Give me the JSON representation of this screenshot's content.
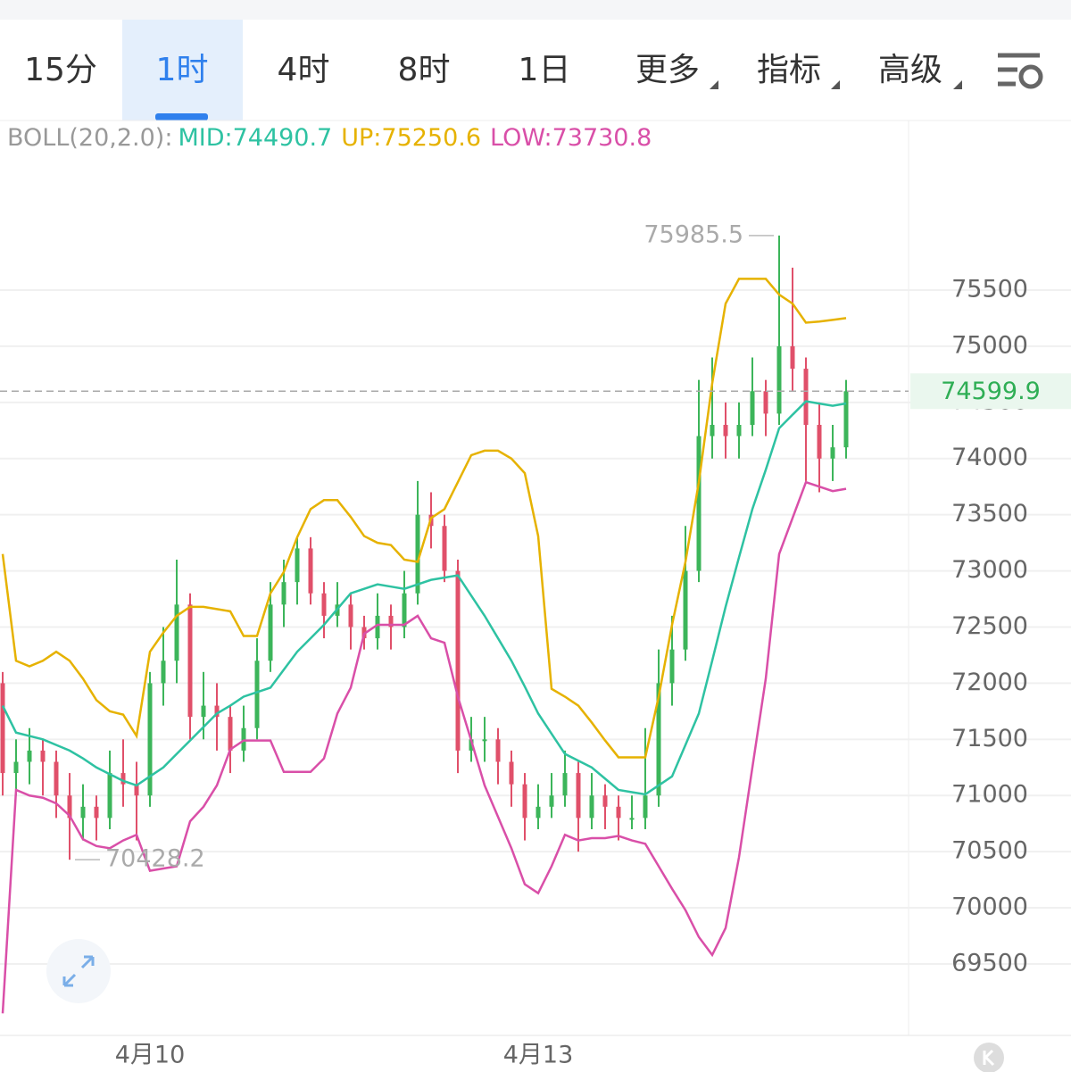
{
  "toolbar": {
    "tabs": [
      "15分",
      "1时",
      "4时",
      "8时",
      "1日",
      "更多",
      "指标",
      "高级"
    ],
    "selected": 1
  },
  "chart_data": {
    "type": "candlestick",
    "indicator": "BOLL(20,2.0):",
    "categories": [
      null,
      null,
      null,
      null,
      null,
      null,
      null,
      null,
      null,
      null,
      null,
      "4月10",
      null,
      null,
      null,
      null,
      null,
      null,
      null,
      null,
      null,
      null,
      null,
      null,
      null,
      null,
      null,
      null,
      null,
      null,
      null,
      null,
      null,
      null,
      null,
      null,
      null,
      null,
      null,
      null,
      "4月13",
      null,
      null,
      null,
      null,
      null,
      null,
      null,
      null,
      null,
      null,
      null,
      null,
      null,
      null,
      null,
      null,
      null,
      null,
      null,
      null,
      null,
      null,
      null
    ],
    "open": [
      72000,
      71200,
      71300,
      71400,
      71300,
      71000,
      70800,
      70900,
      70800,
      71200,
      71100,
      71000,
      72000,
      72200,
      72700,
      71700,
      71800,
      71700,
      71400,
      71600,
      72200,
      72700,
      72900,
      73200,
      72800,
      72600,
      72700,
      72500,
      72400,
      72600,
      72500,
      72800,
      73500,
      73400,
      73000,
      71400,
      71500,
      71500,
      71300,
      71100,
      70800,
      70900,
      71000,
      71200,
      70800,
      71000,
      70900,
      70800,
      70800,
      71000,
      72000,
      72300,
      73000,
      74200,
      74300,
      74200,
      74300,
      74600,
      74400,
      75000,
      74800,
      74300,
      74000,
      74100
    ],
    "high": [
      72100,
      71500,
      71600,
      71500,
      71400,
      71200,
      71100,
      71000,
      71400,
      71500,
      71300,
      72100,
      72500,
      73100,
      72800,
      72100,
      72000,
      71800,
      71800,
      72400,
      72900,
      73100,
      73300,
      73300,
      72900,
      72900,
      72800,
      72600,
      72800,
      72700,
      73000,
      73800,
      73700,
      73500,
      73100,
      71700,
      71700,
      71600,
      71400,
      71200,
      71100,
      71200,
      71400,
      71300,
      71200,
      71100,
      71000,
      71000,
      71600,
      72300,
      72600,
      73400,
      74700,
      74900,
      74500,
      74500,
      74900,
      74700,
      75985.5,
      75700,
      74900,
      74500,
      74300,
      74700
    ],
    "low": [
      71000,
      71000,
      71100,
      71000,
      70800,
      70428.2,
      70600,
      70600,
      70700,
      70900,
      70600,
      70900,
      71800,
      72000,
      71500,
      71500,
      71400,
      71200,
      71300,
      71500,
      72100,
      72500,
      72700,
      72700,
      72400,
      72500,
      72300,
      72300,
      72300,
      72300,
      72400,
      72700,
      73200,
      72900,
      71200,
      71300,
      71300,
      71100,
      70900,
      70600,
      70700,
      70800,
      70900,
      70500,
      70700,
      70700,
      70600,
      70700,
      70700,
      70900,
      71800,
      72200,
      72900,
      74000,
      74000,
      74000,
      74200,
      74200,
      74300,
      74600,
      73800,
      73700,
      73800,
      74000
    ],
    "close": [
      71200,
      71300,
      71400,
      71300,
      71000,
      70800,
      70900,
      70800,
      71200,
      71100,
      71000,
      72000,
      72200,
      72700,
      71700,
      71800,
      71700,
      71400,
      71600,
      72200,
      72700,
      72900,
      73200,
      72800,
      72600,
      72700,
      72500,
      72400,
      72600,
      72500,
      72800,
      73500,
      73400,
      73000,
      71400,
      71500,
      71500,
      71300,
      71100,
      70800,
      70900,
      71000,
      71200,
      70800,
      71000,
      70900,
      70800,
      70800,
      71000,
      72000,
      72300,
      73000,
      74200,
      74300,
      74200,
      74300,
      74600,
      74400,
      75000,
      74800,
      74300,
      74000,
      74100,
      74599.9
    ],
    "up_color": "#3cb55a",
    "down_color": "#e0506a",
    "series": [
      {
        "name": "MID:74490.7",
        "color": "#2ec2a2",
        "values": [
          71800,
          71560,
          71530,
          71500,
          71450,
          71400,
          71330,
          71250,
          71190,
          71130,
          71090,
          71170,
          71250,
          71370,
          71490,
          71610,
          71730,
          71800,
          71880,
          71920,
          71960,
          72120,
          72280,
          72400,
          72520,
          72660,
          72800,
          72840,
          72880,
          72860,
          72840,
          72880,
          72920,
          72940,
          72960,
          72780,
          72600,
          72400,
          72200,
          71970,
          71730,
          71550,
          71370,
          71310,
          71250,
          71150,
          71050,
          71030,
          71010,
          71090,
          71170,
          71450,
          71730,
          72200,
          72680,
          73120,
          73550,
          73900,
          74270,
          74390,
          74510,
          74490,
          74470,
          74490.7
        ]
      },
      {
        "name": "UP:75250.6",
        "color": "#e6b200",
        "values": [
          73150,
          72200,
          72150,
          72200,
          72280,
          72200,
          72040,
          71850,
          71750,
          71720,
          71530,
          72280,
          72450,
          72600,
          72680,
          72680,
          72660,
          72640,
          72420,
          72420,
          72800,
          72990,
          73300,
          73550,
          73630,
          73630,
          73480,
          73310,
          73250,
          73230,
          73100,
          73080,
          73470,
          73550,
          73790,
          74030,
          74070,
          74070,
          74000,
          73870,
          73310,
          71950,
          71880,
          71800,
          71650,
          71490,
          71340,
          71340,
          71340,
          71880,
          72520,
          73080,
          73790,
          74670,
          75380,
          75600,
          75600,
          75600,
          75460,
          75380,
          75210,
          75220,
          75235,
          75250.6
        ]
      },
      {
        "name": "LOW:73730.8",
        "color": "#d94fa8",
        "values": [
          69060,
          71050,
          71000,
          70980,
          70930,
          70820,
          70610,
          70550,
          70530,
          70600,
          70650,
          70330,
          70350,
          70370,
          70770,
          70900,
          71090,
          71410,
          71490,
          71490,
          71490,
          71210,
          71210,
          71210,
          71330,
          71730,
          71960,
          72440,
          72520,
          72520,
          72520,
          72600,
          72400,
          72360,
          71880,
          71490,
          71090,
          70810,
          70530,
          70210,
          70130,
          70370,
          70650,
          70600,
          70620,
          70620,
          70640,
          70600,
          70570,
          70370,
          70170,
          69980,
          69740,
          69580,
          69820,
          70450,
          71250,
          72040,
          73150,
          73470,
          73790,
          73750,
          73710,
          73730.8
        ]
      }
    ],
    "ylim": [
      68864,
      77010
    ],
    "yticks": [
      69500,
      70000,
      70500,
      71000,
      71500,
      72000,
      72500,
      73000,
      73500,
      74000,
      74500,
      75000,
      75500
    ],
    "grid": true
  }
}
